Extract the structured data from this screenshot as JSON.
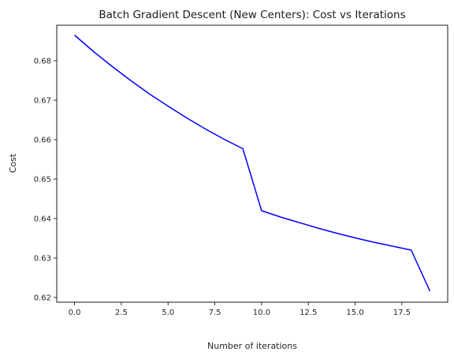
{
  "chart_data": {
    "type": "line",
    "title": "Batch Gradient Descent (New Centers): Cost vs Iterations",
    "xlabel": "Number of iterations",
    "ylabel": "Cost",
    "xlim": [
      -0.95,
      19.95
    ],
    "ylim": [
      0.6188,
      0.689
    ],
    "xticks": [
      "0.0",
      "2.5",
      "5.0",
      "7.5",
      "10.0",
      "12.5",
      "15.0",
      "17.5"
    ],
    "yticks": [
      "0.62",
      "0.63",
      "0.64",
      "0.65",
      "0.66",
      "0.67",
      "0.68"
    ],
    "grid": false,
    "legend": "none",
    "series": [
      {
        "color": "#0000ff",
        "x": [
          0,
          1,
          2,
          3,
          4,
          5,
          6,
          7,
          8,
          9,
          10,
          11,
          12,
          13,
          14,
          15,
          16,
          17,
          18,
          19
        ],
        "y": [
          0.6865,
          0.6824,
          0.6786,
          0.675,
          0.6716,
          0.6685,
          0.6655,
          0.6627,
          0.6601,
          0.6577,
          0.642,
          0.6404,
          0.639,
          0.6376,
          0.6363,
          0.6351,
          0.634,
          0.633,
          0.632,
          0.6216
        ]
      }
    ]
  }
}
